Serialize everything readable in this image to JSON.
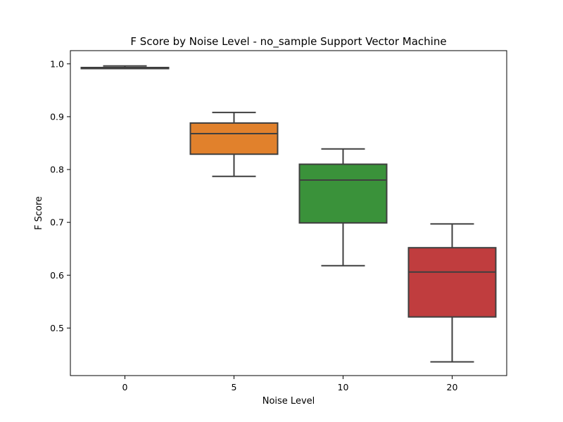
{
  "chart_data": {
    "type": "box",
    "title": "F Score by Noise Level - no_sample Support Vector Machine",
    "xlabel": "Noise Level",
    "ylabel": "F Score",
    "categories": [
      "0",
      "5",
      "10",
      "20"
    ],
    "ylim": [
      0.41,
      1.025
    ],
    "yticks": [
      "0.5",
      "0.6",
      "0.7",
      "0.8",
      "0.9",
      "1.0"
    ],
    "grid": false,
    "boxes": [
      {
        "category": "0",
        "min": 0.991,
        "q1": 0.991,
        "median": 0.993,
        "q3": 0.993,
        "max": 0.996,
        "color": "#3a75af"
      },
      {
        "category": "5",
        "min": 0.787,
        "q1": 0.829,
        "median": 0.868,
        "q3": 0.888,
        "max": 0.908,
        "color": "#e1812c"
      },
      {
        "category": "10",
        "min": 0.618,
        "q1": 0.699,
        "median": 0.78,
        "q3": 0.81,
        "max": 0.839,
        "color": "#3a923a"
      },
      {
        "category": "20",
        "min": 0.436,
        "q1": 0.521,
        "median": 0.606,
        "q3": 0.652,
        "max": 0.697,
        "color": "#c03d3e"
      }
    ]
  }
}
